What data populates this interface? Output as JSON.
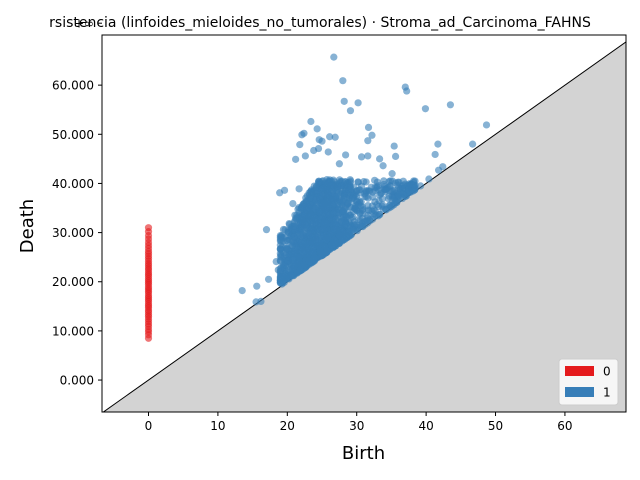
{
  "chart_data": {
    "type": "scatter",
    "title": "rsistencia (linfoides_mieloides_no_tumorales) · Stroma_ad_Carcinoma_FAHNS",
    "xlabel": "Birth",
    "ylabel": "Death",
    "xlim": [
      -6.7,
      68.8
    ],
    "ylim": [
      -6.5,
      70.2
    ],
    "x_ticks": [
      0,
      10,
      20,
      30,
      40,
      50,
      60
    ],
    "x_tick_labels": [
      "0",
      "10",
      "20",
      "30",
      "40",
      "50",
      "60"
    ],
    "y_ticks": [
      0,
      10,
      20,
      30,
      40,
      50,
      60
    ],
    "y_tick_labels": [
      "0.000",
      "10.000",
      "20.000",
      "30.000",
      "40.000",
      "50.000",
      "60.000"
    ],
    "infinity_level": 72.6,
    "infinity_label": "+∞",
    "diagonal": true,
    "legend_position": "lower-right",
    "series": [
      {
        "name": "0",
        "color": "#e41a1c",
        "points": [
          [
            0,
            72.6
          ],
          [
            0,
            8.5
          ],
          [
            0,
            9.2
          ],
          [
            0,
            9.8
          ],
          [
            0,
            10.3
          ],
          [
            0,
            10.9
          ],
          [
            0,
            11.4
          ],
          [
            0,
            11.9
          ],
          [
            0,
            12.4
          ],
          [
            0,
            12.9
          ],
          [
            0,
            13.3
          ],
          [
            0,
            13.8
          ],
          [
            0,
            14.2
          ],
          [
            0,
            14.7
          ],
          [
            0,
            15.1
          ],
          [
            0,
            15.5
          ],
          [
            0,
            16.0
          ],
          [
            0,
            16.4
          ],
          [
            0,
            16.8
          ],
          [
            0,
            17.2
          ],
          [
            0,
            17.7
          ],
          [
            0,
            18.1
          ],
          [
            0,
            18.5
          ],
          [
            0,
            18.9
          ],
          [
            0,
            19.4
          ],
          [
            0,
            19.8
          ],
          [
            0,
            20.2
          ],
          [
            0,
            20.6
          ],
          [
            0,
            21.1
          ],
          [
            0,
            21.5
          ],
          [
            0,
            21.9
          ],
          [
            0,
            22.4
          ],
          [
            0,
            22.8
          ],
          [
            0,
            23.3
          ],
          [
            0,
            23.7
          ],
          [
            0,
            24.2
          ],
          [
            0,
            24.7
          ],
          [
            0,
            25.2
          ],
          [
            0,
            25.7
          ],
          [
            0,
            26.2
          ],
          [
            0,
            26.8
          ],
          [
            0,
            27.4
          ],
          [
            0,
            28.0
          ],
          [
            0,
            28.7
          ],
          [
            0,
            29.4
          ],
          [
            0,
            30.2
          ],
          [
            0,
            31.0
          ]
        ]
      },
      {
        "name": "1",
        "color": "#377eb8",
        "points": [
          [
            26.7,
            65.7
          ],
          [
            28.0,
            60.9
          ],
          [
            37.0,
            59.6
          ],
          [
            37.2,
            58.8
          ],
          [
            28.2,
            56.7
          ],
          [
            30.2,
            56.4
          ],
          [
            43.5,
            56.0
          ],
          [
            39.9,
            55.2
          ],
          [
            29.1,
            54.8
          ],
          [
            23.4,
            52.6
          ],
          [
            48.7,
            51.9
          ],
          [
            31.7,
            51.4
          ],
          [
            24.3,
            51.1
          ],
          [
            22.4,
            50.2
          ],
          [
            22.1,
            49.9
          ],
          [
            32.2,
            49.8
          ],
          [
            26.1,
            49.5
          ],
          [
            26.9,
            49.4
          ],
          [
            24.6,
            48.9
          ],
          [
            31.6,
            48.7
          ],
          [
            25.0,
            48.6
          ],
          [
            21.8,
            47.9
          ],
          [
            41.7,
            48.0
          ],
          [
            46.7,
            48.0
          ],
          [
            35.4,
            47.6
          ],
          [
            24.5,
            47.1
          ],
          [
            23.8,
            46.7
          ],
          [
            25.9,
            46.4
          ],
          [
            22.6,
            45.6
          ],
          [
            28.4,
            45.8
          ],
          [
            31.6,
            45.6
          ],
          [
            33.3,
            45.0
          ],
          [
            21.2,
            44.9
          ],
          [
            30.7,
            45.4
          ],
          [
            41.3,
            45.9
          ],
          [
            35.6,
            45.5
          ],
          [
            27.5,
            44.0
          ],
          [
            33.8,
            43.6
          ],
          [
            42.4,
            43.4
          ],
          [
            41.8,
            42.7
          ],
          [
            35.1,
            42.0
          ],
          [
            19.6,
            38.6
          ],
          [
            21.7,
            38.9
          ],
          [
            18.9,
            38.1
          ],
          [
            33.9,
            39.8
          ],
          [
            20.8,
            35.9
          ],
          [
            38.2,
            40.5
          ],
          [
            40.4,
            40.9
          ],
          [
            39.2,
            39.5
          ],
          [
            17.0,
            30.6
          ],
          [
            13.5,
            18.2
          ],
          [
            15.5,
            15.9
          ],
          [
            16.2,
            16.0
          ],
          [
            15.6,
            19.1
          ],
          [
            17.3,
            20.5
          ],
          [
            18.7,
            22.4
          ],
          [
            19.5,
            21.3
          ],
          [
            18.4,
            24.1
          ],
          [
            20.1,
            24.3
          ],
          [
            19.0,
            26.7
          ]
        ]
      }
    ],
    "cloud": {
      "series_index": 1,
      "count": 1400,
      "birth_range": [
        19.0,
        38.5
      ],
      "birth_peak": 24.5,
      "death_above_diagonal_range": [
        0.3,
        16.0
      ],
      "death_max": 46.5
    }
  }
}
